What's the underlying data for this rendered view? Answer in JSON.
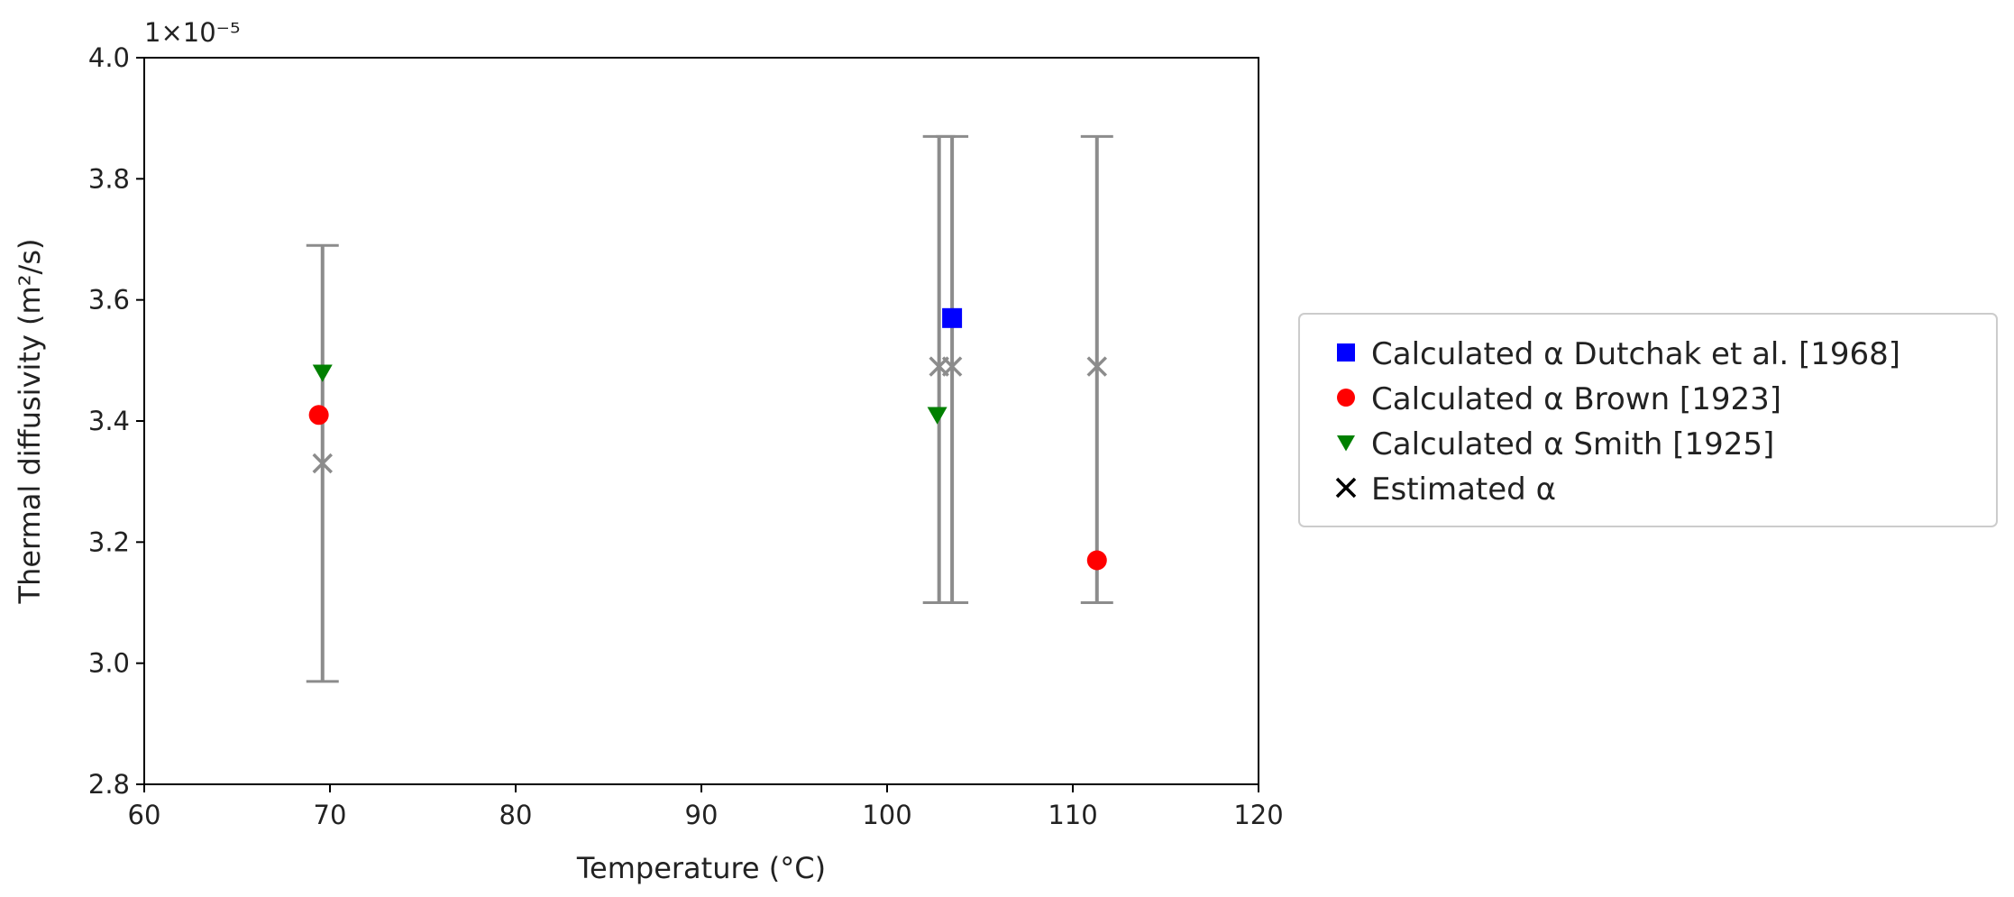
{
  "chart_data": {
    "type": "scatter",
    "xlabel": "Temperature (°C)",
    "ylabel": "Thermal diffusivity (m²/s)",
    "y_offset_label": "1×10⁻⁵",
    "xlim": [
      60,
      120
    ],
    "ylim": [
      2.8,
      4.0
    ],
    "x_ticks": [
      60,
      70,
      80,
      90,
      100,
      110,
      120
    ],
    "y_ticks": [
      2.8,
      3.0,
      3.2,
      3.4,
      3.6,
      3.8,
      4.0
    ],
    "x_tick_labels": [
      "60",
      "70",
      "80",
      "90",
      "100",
      "110",
      "120"
    ],
    "y_tick_labels": [
      "2.8",
      "3.0",
      "3.2",
      "3.4",
      "3.6",
      "3.8",
      "4.0"
    ],
    "grid": false,
    "legend_position": "outside-right",
    "series": [
      {
        "name": "Calculated α Dutchak et al. [1968]",
        "marker": "square",
        "color": "#0000ff",
        "points": [
          {
            "x": 103.5,
            "y": 3.57
          }
        ]
      },
      {
        "name": "Calculated α Brown [1923]",
        "marker": "circle",
        "color": "#ff0000",
        "points": [
          {
            "x": 69.4,
            "y": 3.41
          },
          {
            "x": 111.3,
            "y": 3.17
          }
        ]
      },
      {
        "name": "Calculated α Smith [1925]",
        "marker": "triangle-down",
        "color": "#008000",
        "points": [
          {
            "x": 69.6,
            "y": 3.48
          },
          {
            "x": 102.7,
            "y": 3.41
          }
        ]
      },
      {
        "name": "Estimated α",
        "marker": "x",
        "color": "#8c8c8c",
        "legend_color": "#000000",
        "points": [
          {
            "x": 69.6,
            "y": 3.33,
            "ymin": 2.97,
            "ymax": 3.69
          },
          {
            "x": 102.8,
            "y": 3.49,
            "ymin": 3.1,
            "ymax": 3.87
          },
          {
            "x": 103.5,
            "y": 3.49,
            "ymin": 3.1,
            "ymax": 3.87
          },
          {
            "x": 111.3,
            "y": 3.49,
            "ymin": 3.1,
            "ymax": 3.87
          }
        ]
      }
    ]
  }
}
